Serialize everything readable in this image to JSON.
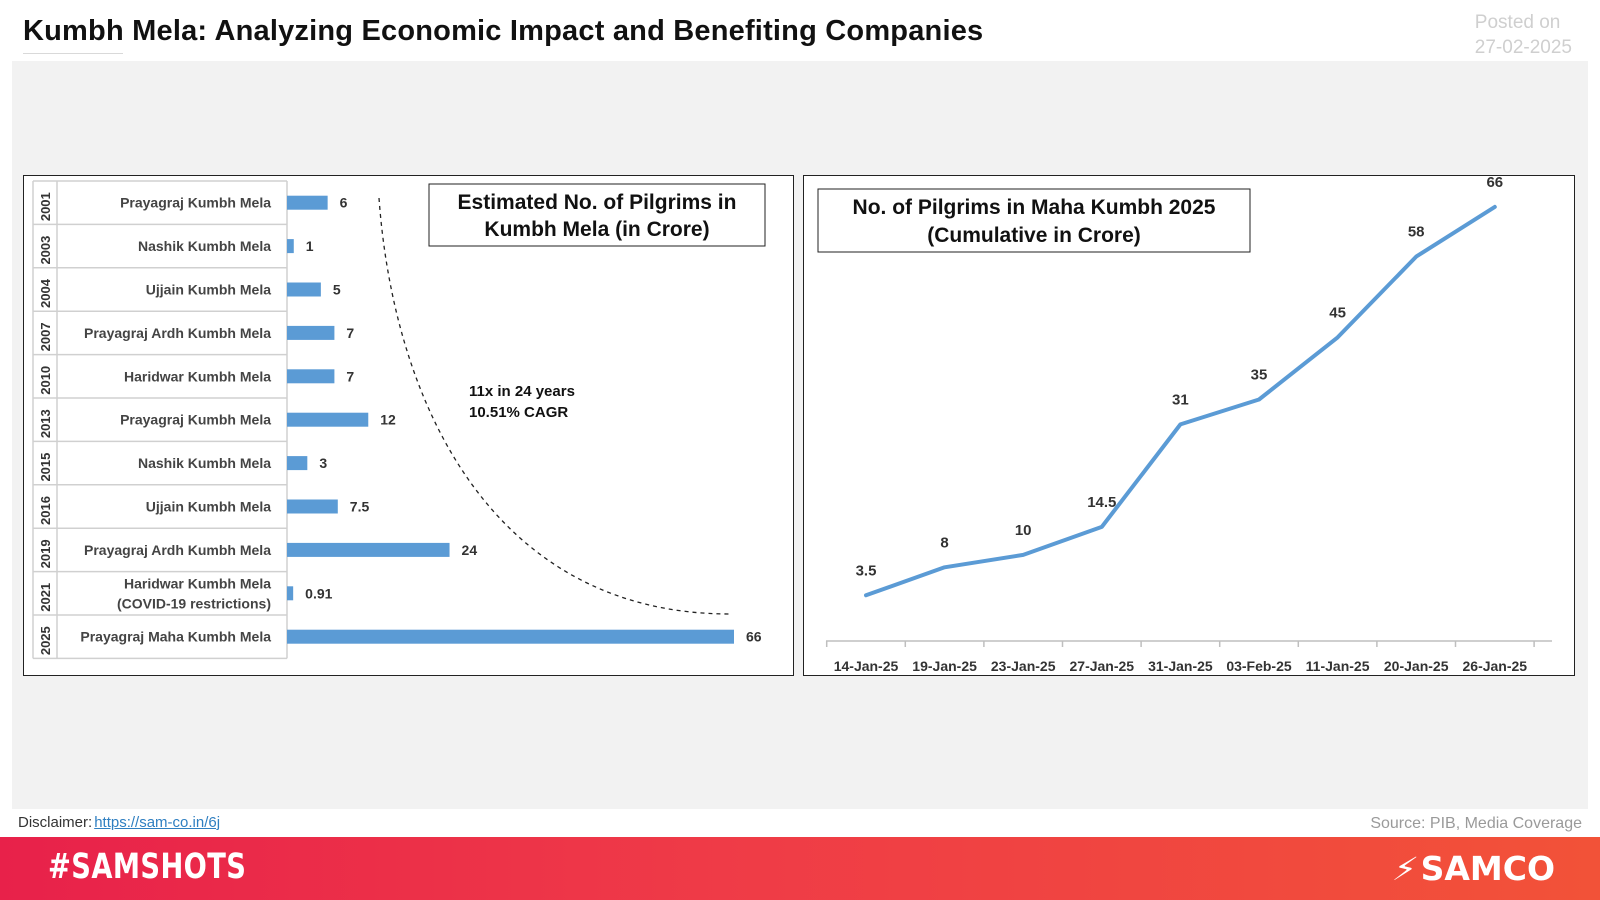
{
  "header": {
    "title": "Kumbh Mela: Analyzing Economic Impact and Benefiting Companies",
    "posted_label": "Posted on",
    "posted_date": "27-02-2025"
  },
  "colors": {
    "bar": "#5b9bd5",
    "line": "#5b9bd5",
    "footer_start": "#e8214a",
    "footer_end": "#f25238"
  },
  "chart_data": [
    {
      "type": "bar",
      "orientation": "horizontal",
      "title": "Estimated No. of Pilgrims in Kumbh Mela (in Crore)",
      "title_lines": [
        "Estimated No. of Pilgrims in",
        "Kumbh Mela (in Crore)"
      ],
      "categories": [
        "2001",
        "2003",
        "2004",
        "2007",
        "2010",
        "2013",
        "2015",
        "2016",
        "2019",
        "2021",
        "2025"
      ],
      "category_labels": [
        [
          "Prayagraj Kumbh Mela"
        ],
        [
          "Nashik Kumbh Mela"
        ],
        [
          "Ujjain Kumbh Mela"
        ],
        [
          "Prayagraj Ardh Kumbh Mela"
        ],
        [
          "Haridwar Kumbh Mela"
        ],
        [
          "Prayagraj Kumbh Mela"
        ],
        [
          "Nashik Kumbh Mela"
        ],
        [
          "Ujjain Kumbh Mela"
        ],
        [
          "Prayagraj Ardh Kumbh Mela"
        ],
        [
          "Haridwar Kumbh Mela",
          "(COVID-19 restrictions)"
        ],
        [
          "Prayagraj Maha Kumbh Mela"
        ]
      ],
      "values": [
        6,
        1,
        5,
        7,
        7,
        12,
        3,
        7.5,
        24,
        0.91,
        66
      ],
      "data_labels": [
        "6",
        "1",
        "5",
        "7",
        "7",
        "12",
        "3",
        "7.5",
        "24",
        "0.91",
        "66"
      ],
      "annotation_lines": [
        "11x in 24 years",
        "10.51% CAGR"
      ],
      "xlim": [
        0,
        66
      ]
    },
    {
      "type": "line",
      "title": "No. of Pilgrims in Maha Kumbh 2025 (Cumulative in Crore)",
      "title_lines": [
        "No. of Pilgrims in Maha Kumbh 2025",
        "(Cumulative in Crore)"
      ],
      "categories": [
        "14-Jan-25",
        "19-Jan-25",
        "23-Jan-25",
        "27-Jan-25",
        "31-Jan-25",
        "03-Feb-25",
        "11-Jan-25",
        "20-Jan-25",
        "26-Jan-25"
      ],
      "values": [
        3.5,
        8,
        10,
        14.5,
        31,
        35,
        45,
        58,
        66
      ],
      "data_labels": [
        "3.5",
        "8",
        "10",
        "14.5",
        "31",
        "35",
        "45",
        "58",
        "66"
      ],
      "ylim": [
        0,
        70
      ]
    }
  ],
  "footer": {
    "disclaimer_label": "Disclaimer:",
    "disclaimer_link": "https://sam-co.in/6j",
    "source": "Source: PIB, Media Coverage",
    "hashtag": "#SAMSHOTS",
    "brand": "SAMCO"
  }
}
